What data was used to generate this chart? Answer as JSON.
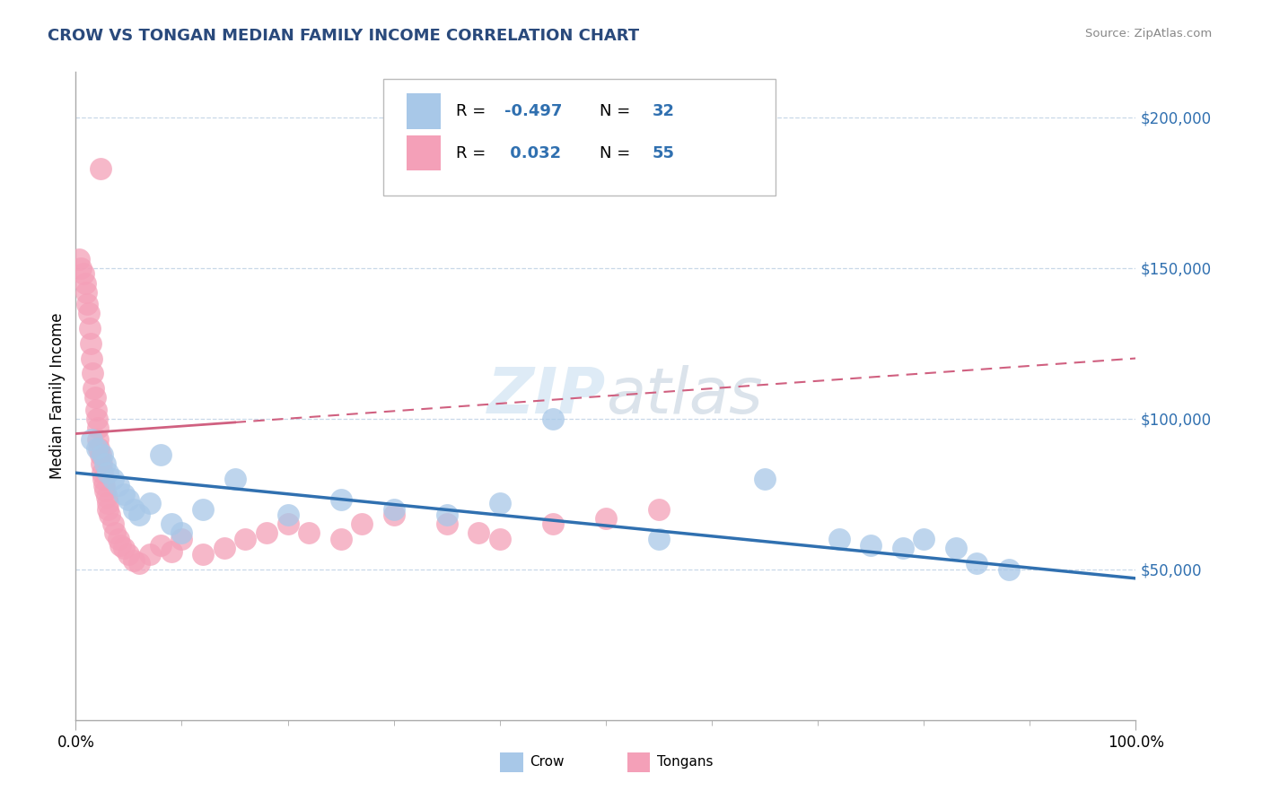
{
  "title": "CROW VS TONGAN MEDIAN FAMILY INCOME CORRELATION CHART",
  "source_text": "Source: ZipAtlas.com",
  "ylabel": "Median Family Income",
  "xlim": [
    0,
    100
  ],
  "ylim": [
    0,
    215000
  ],
  "crow_R": -0.497,
  "crow_N": 32,
  "tongan_R": 0.032,
  "tongan_N": 55,
  "crow_color": "#a8c8e8",
  "tongan_color": "#f4a0b8",
  "crow_line_color": "#3070b0",
  "tongan_line_color": "#d06080",
  "background_color": "#ffffff",
  "grid_color": "#c8d8e8",
  "title_color": "#2a4a7c",
  "watermark_color": "#c8dff0",
  "crow_x": [
    1.5,
    2.0,
    2.5,
    2.8,
    3.0,
    3.5,
    4.0,
    4.5,
    5.0,
    5.5,
    6.0,
    7.0,
    8.0,
    9.0,
    10.0,
    12.0,
    15.0,
    20.0,
    25.0,
    30.0,
    35.0,
    40.0,
    45.0,
    55.0,
    65.0,
    72.0,
    75.0,
    78.0,
    80.0,
    83.0,
    85.0,
    88.0
  ],
  "crow_y": [
    93000,
    90000,
    88000,
    85000,
    82000,
    80000,
    78000,
    75000,
    73000,
    70000,
    68000,
    72000,
    88000,
    65000,
    62000,
    70000,
    80000,
    68000,
    73000,
    70000,
    68000,
    72000,
    100000,
    60000,
    80000,
    60000,
    58000,
    57000,
    60000,
    57000,
    52000,
    50000
  ],
  "tongan_x": [
    0.3,
    0.5,
    0.7,
    0.9,
    1.0,
    1.1,
    1.2,
    1.3,
    1.4,
    1.5,
    1.6,
    1.7,
    1.8,
    1.9,
    2.0,
    2.1,
    2.1,
    2.2,
    2.3,
    2.4,
    2.5,
    2.6,
    2.7,
    2.8,
    2.9,
    3.0,
    3.0,
    3.2,
    3.5,
    3.7,
    4.0,
    4.2,
    4.5,
    5.0,
    5.5,
    6.0,
    7.0,
    8.0,
    9.0,
    10.0,
    12.0,
    14.0,
    16.0,
    18.0,
    20.0,
    22.0,
    25.0,
    27.0,
    30.0,
    35.0,
    38.0,
    40.0,
    45.0,
    50.0,
    55.0
  ],
  "tongan_y": [
    153000,
    150000,
    148000,
    145000,
    142000,
    138000,
    135000,
    130000,
    125000,
    120000,
    115000,
    110000,
    107000,
    103000,
    100000,
    97000,
    93000,
    90000,
    88000,
    85000,
    82000,
    80000,
    78000,
    76000,
    74000,
    72000,
    70000,
    68000,
    65000,
    62000,
    60000,
    58000,
    57000,
    55000,
    53000,
    52000,
    55000,
    58000,
    56000,
    60000,
    55000,
    57000,
    60000,
    62000,
    65000,
    62000,
    60000,
    65000,
    68000,
    65000,
    62000,
    60000,
    65000,
    67000,
    70000
  ],
  "tongan_outlier_x": [
    2.3
  ],
  "tongan_outlier_y": [
    183000
  ],
  "tongan_line_intercept": 95000,
  "tongan_line_slope": 250,
  "crow_line_intercept": 82000,
  "crow_line_slope": -350
}
